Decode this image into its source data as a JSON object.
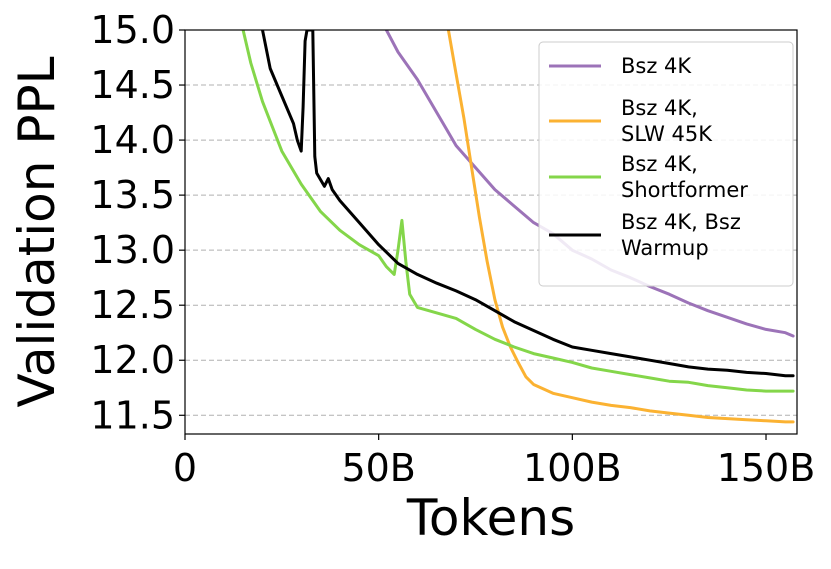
{
  "chart_data": {
    "type": "line",
    "title": "",
    "xlabel": "Tokens",
    "ylabel": "Validation PPL",
    "xlim": [
      0,
      158
    ],
    "ylim": [
      11.33,
      15.0
    ],
    "x_ticks": [
      {
        "value": 0,
        "label": "0"
      },
      {
        "value": 50,
        "label": "50B"
      },
      {
        "value": 100,
        "label": "100B"
      },
      {
        "value": 150,
        "label": "150B"
      }
    ],
    "y_ticks": [
      {
        "value": 11.5,
        "label": "11.5"
      },
      {
        "value": 12.0,
        "label": "12.0"
      },
      {
        "value": 12.5,
        "label": "12.5"
      },
      {
        "value": 13.0,
        "label": "13.0"
      },
      {
        "value": 13.5,
        "label": "13.5"
      },
      {
        "value": 14.0,
        "label": "14.0"
      },
      {
        "value": 14.5,
        "label": "14.5"
      },
      {
        "value": 15.0,
        "label": "15.0"
      }
    ],
    "grid": "horizontal dashed",
    "legend_position": "top-right",
    "series": [
      {
        "name": "Bsz 4K",
        "color": "#9c73b8",
        "x": [
          52,
          55,
          60,
          65,
          70,
          75,
          80,
          85,
          90,
          95,
          100,
          105,
          110,
          115,
          120,
          125,
          130,
          135,
          140,
          145,
          150,
          155,
          157
        ],
        "y": [
          15.0,
          14.8,
          14.55,
          14.25,
          13.95,
          13.75,
          13.55,
          13.4,
          13.25,
          13.15,
          13.0,
          12.92,
          12.82,
          12.75,
          12.67,
          12.6,
          12.52,
          12.45,
          12.39,
          12.33,
          12.28,
          12.25,
          12.22
        ]
      },
      {
        "name": "Bsz 4K, SLW 45K",
        "color": "#fbb232",
        "x": [
          68,
          70,
          72,
          74,
          76,
          78,
          80,
          82,
          84,
          86,
          88,
          90,
          95,
          100,
          105,
          110,
          115,
          120,
          125,
          130,
          135,
          140,
          145,
          150,
          155,
          157
        ],
        "y": [
          15.0,
          14.6,
          14.2,
          13.75,
          13.3,
          12.9,
          12.55,
          12.3,
          12.12,
          11.98,
          11.85,
          11.78,
          11.7,
          11.66,
          11.62,
          11.59,
          11.57,
          11.54,
          11.52,
          11.5,
          11.48,
          11.47,
          11.46,
          11.45,
          11.44,
          11.44
        ]
      },
      {
        "name": "Bsz 4K, Shortformer",
        "color": "#84d64a",
        "x": [
          15,
          17,
          20,
          25,
          30,
          35,
          40,
          45,
          50,
          52,
          54,
          55,
          56,
          57,
          58,
          60,
          65,
          70,
          75,
          80,
          85,
          90,
          95,
          100,
          105,
          110,
          115,
          120,
          125,
          130,
          135,
          140,
          145,
          150,
          155,
          157
        ],
        "y": [
          15.0,
          14.7,
          14.35,
          13.9,
          13.6,
          13.35,
          13.18,
          13.05,
          12.95,
          12.85,
          12.78,
          13.0,
          13.27,
          12.9,
          12.6,
          12.48,
          12.43,
          12.38,
          12.28,
          12.19,
          12.12,
          12.06,
          12.02,
          11.98,
          11.93,
          11.9,
          11.87,
          11.84,
          11.81,
          11.8,
          11.77,
          11.75,
          11.73,
          11.72,
          11.72,
          11.72
        ]
      },
      {
        "name": "Bsz 4K, Bsz Warmup",
        "color": "#000000",
        "x": [
          20,
          22,
          25,
          28,
          29,
          30,
          30.5,
          31,
          31.5,
          33,
          33.5,
          34,
          36,
          37,
          38,
          40,
          45,
          50,
          55,
          60,
          65,
          70,
          75,
          80,
          85,
          90,
          95,
          100,
          105,
          110,
          115,
          120,
          125,
          130,
          135,
          140,
          145,
          150,
          155,
          157
        ],
        "y": [
          15.0,
          14.65,
          14.4,
          14.15,
          14.0,
          13.9,
          14.3,
          14.9,
          15.0,
          15.0,
          13.85,
          13.7,
          13.58,
          13.65,
          13.55,
          13.45,
          13.25,
          13.05,
          12.88,
          12.78,
          12.7,
          12.63,
          12.55,
          12.45,
          12.35,
          12.27,
          12.19,
          12.12,
          12.09,
          12.06,
          12.03,
          12.0,
          11.97,
          11.94,
          11.92,
          11.91,
          11.89,
          11.88,
          11.86,
          11.86
        ]
      }
    ],
    "legend_lines": [
      [
        "Bsz 4K"
      ],
      [
        "Bsz 4K,",
        "SLW 45K"
      ],
      [
        "Bsz 4K,",
        "Shortformer"
      ],
      [
        "Bsz 4K, Bsz",
        "Warmup"
      ]
    ]
  }
}
